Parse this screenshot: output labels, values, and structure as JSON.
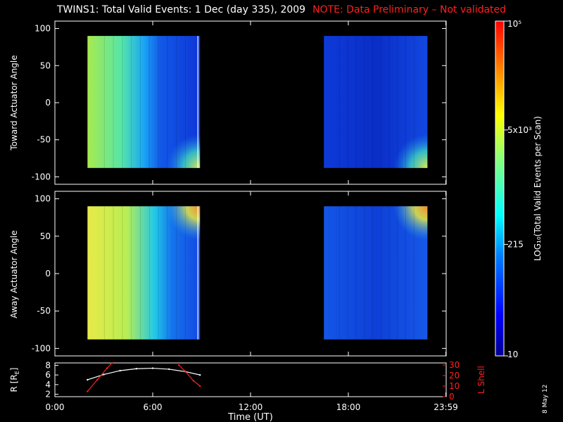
{
  "header": {
    "title": "TWINS1: Total Valid Events:  1 Dec (day 335), 2009",
    "note": "NOTE: Data Preliminary – Not validated",
    "note_color": "#ff2020"
  },
  "datestamp": "8 May 12",
  "chart_data": [
    {
      "type": "heatmap",
      "ylabel": "Toward Actuator Angle",
      "ylim": [
        -110,
        110
      ],
      "yticks": [
        -100,
        -50,
        0,
        50,
        100
      ],
      "xlim": [
        0,
        24
      ],
      "data_blocks": [
        {
          "x_start": 2.0,
          "x_end": 8.9,
          "y_start": -88,
          "y_end": 90
        },
        {
          "x_start": 16.5,
          "x_end": 22.85,
          "y_start": -88,
          "y_end": 90
        }
      ]
    },
    {
      "type": "heatmap",
      "ylabel": "Away Actuator Angle",
      "ylim": [
        -110,
        110
      ],
      "yticks": [
        -100,
        -50,
        0,
        50,
        100
      ],
      "xlim": [
        0,
        24
      ],
      "data_blocks": [
        {
          "x_start": 2.0,
          "x_end": 8.9,
          "y_start": -88,
          "y_end": 90
        },
        {
          "x_start": 16.5,
          "x_end": 22.85,
          "y_start": -88,
          "y_end": 90
        }
      ]
    },
    {
      "type": "line",
      "ylabel": "R [R",
      "ylabel_sub": "E",
      "ylabel_close": "]",
      "ylim": [
        1.5,
        8.5
      ],
      "yticks": [
        2,
        4,
        6,
        8
      ],
      "y2label": "L Shell",
      "y2lim": [
        0,
        32
      ],
      "y2ticks": [
        0,
        10,
        20,
        30
      ],
      "xlabel": "Time (UT)",
      "xticks": [
        {
          "value": 0,
          "label": "0:00"
        },
        {
          "value": 6,
          "label": "6:00"
        },
        {
          "value": 12,
          "label": "12:00"
        },
        {
          "value": 18,
          "label": "18:00"
        },
        {
          "value": 23.98,
          "label": "23:59"
        }
      ],
      "series": [
        {
          "color": "#ffffff",
          "x": [
            2.0,
            3.0,
            4.0,
            5.0,
            6.0,
            7.0,
            8.0,
            8.9
          ],
          "y": [
            5.0,
            6.1,
            6.9,
            7.3,
            7.4,
            7.2,
            6.7,
            6.0
          ]
        },
        {
          "color": "#ff2020",
          "x": [
            2.0,
            2.6,
            3.2,
            3.5
          ],
          "y": [
            5.0,
            16.0,
            27.0,
            32.0
          ]
        },
        {
          "color": "#ff2020",
          "x": [
            7.6,
            8.0,
            8.5,
            8.9
          ],
          "y": [
            30.0,
            24.0,
            15.0,
            10.0
          ]
        }
      ]
    }
  ],
  "colorbar": {
    "label": "LOG₁₀(Total Valid Events per Scan)",
    "ticks": [
      {
        "value": 10,
        "label": "10"
      },
      {
        "value": 215,
        "label": "215"
      },
      {
        "value": 5000,
        "label": "5x10³"
      },
      {
        "value": 100000,
        "label": "10⁵"
      }
    ],
    "range": [
      10,
      100000
    ],
    "colors": [
      "#000090",
      "#0000ff",
      "#0080ff",
      "#00ffff",
      "#80ff80",
      "#ffff00",
      "#ff8000",
      "#ff0000"
    ]
  }
}
